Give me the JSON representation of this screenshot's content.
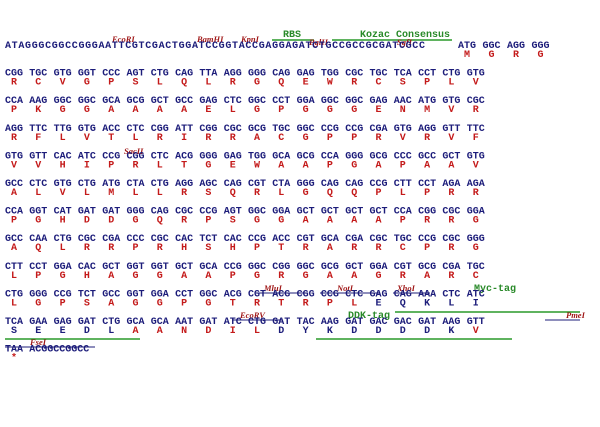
{
  "annotations": [
    "EcoRI",
    "BamHI",
    "KpnI",
    "RBS",
    "BglII",
    "Kozac Consensus",
    "SgfI",
    "SacII",
    "MluI",
    "NotI",
    "XhoI",
    "Myc-tag",
    "EcoRV",
    "DDK-tag",
    "PmeI",
    "FseI"
  ],
  "rows": [
    {
      "leader": "ATAGGGCGGCCGGGAATTCGTCGACTGGATCCGGTACCGAGGAGATCTGCCGCCGCGATCGCC",
      "codons": [
        "ATG",
        "GGC",
        "AGG",
        "GGG"
      ],
      "aa": [
        "M",
        "G",
        "R",
        "G"
      ]
    },
    {
      "codons": [
        "CGG",
        "TGC",
        "GTG",
        "GGT",
        "CCC",
        "AGT",
        "CTG",
        "CAG",
        "TTA",
        "AGG",
        "GGG",
        "CAG",
        "GAG",
        "TGG",
        "CGC",
        "TGC",
        "TCA",
        "CCT",
        "CTG",
        "GTG"
      ],
      "aa": [
        "R",
        "C",
        "V",
        "G",
        "P",
        "S",
        "L",
        "Q",
        "L",
        "R",
        "G",
        "Q",
        "E",
        "W",
        "R",
        "C",
        "S",
        "P",
        "L",
        "V"
      ]
    },
    {
      "codons": [
        "CCA",
        "AAG",
        "GGC",
        "GGC",
        "GCA",
        "GCG",
        "GCT",
        "GCC",
        "GAG",
        "CTC",
        "GGC",
        "CCT",
        "GGA",
        "GGC",
        "GGC",
        "GAG",
        "AAC",
        "ATG",
        "GTG",
        "CGC"
      ],
      "aa": [
        "P",
        "K",
        "G",
        "G",
        "A",
        "A",
        "A",
        "A",
        "E",
        "L",
        "G",
        "P",
        "G",
        "G",
        "G",
        "E",
        "N",
        "M",
        "V",
        "R"
      ]
    },
    {
      "codons": [
        "AGG",
        "TTC",
        "TTG",
        "GTG",
        "ACC",
        "CTC",
        "CGG",
        "ATT",
        "CGG",
        "CGC",
        "GCG",
        "TGC",
        "GGC",
        "CCG",
        "CCG",
        "CGA",
        "GTG",
        "AGG",
        "GTT",
        "TTC"
      ],
      "aa": [
        "R",
        "F",
        "L",
        "V",
        "T",
        "L",
        "R",
        "I",
        "R",
        "R",
        "A",
        "C",
        "G",
        "P",
        "P",
        "R",
        "V",
        "R",
        "V",
        "F"
      ]
    },
    {
      "codons": [
        "GTG",
        "GTT",
        "CAC",
        "ATC",
        "CCG",
        "CGG",
        "CTC",
        "ACG",
        "GGG",
        "GAG",
        "TGG",
        "GCA",
        "GCG",
        "CCA",
        "GGG",
        "GCG",
        "CCC",
        "GCC",
        "GCT",
        "GTG"
      ],
      "aa": [
        "V",
        "V",
        "H",
        "I",
        "P",
        "R",
        "L",
        "T",
        "G",
        "E",
        "W",
        "A",
        "A",
        "P",
        "G",
        "A",
        "P",
        "A",
        "A",
        "V"
      ]
    },
    {
      "codons": [
        "GCC",
        "CTC",
        "GTG",
        "CTG",
        "ATG",
        "CTA",
        "CTG",
        "AGG",
        "AGC",
        "CAG",
        "CGT",
        "CTA",
        "GGG",
        "CAG",
        "CAG",
        "CCG",
        "CTT",
        "CCT",
        "AGA",
        "AGA"
      ],
      "aa": [
        "A",
        "L",
        "V",
        "L",
        "M",
        "L",
        "L",
        "R",
        "S",
        "Q",
        "R",
        "L",
        "G",
        "Q",
        "Q",
        "P",
        "L",
        "P",
        "R",
        "R"
      ]
    },
    {
      "codons": [
        "CCA",
        "GGT",
        "CAT",
        "GAT",
        "GAT",
        "GGG",
        "CAG",
        "CGC",
        "CCG",
        "AGT",
        "GGC",
        "GGA",
        "GCT",
        "GCT",
        "GCT",
        "GCT",
        "CCA",
        "CGG",
        "CGC",
        "GGA"
      ],
      "aa": [
        "P",
        "G",
        "H",
        "D",
        "D",
        "G",
        "Q",
        "R",
        "P",
        "S",
        "G",
        "G",
        "A",
        "A",
        "A",
        "A",
        "P",
        "R",
        "R",
        "G"
      ]
    },
    {
      "codons": [
        "GCC",
        "CAA",
        "CTG",
        "CGC",
        "CGA",
        "CCC",
        "CGC",
        "CAC",
        "TCT",
        "CAC",
        "CCG",
        "ACC",
        "CGT",
        "GCA",
        "CGA",
        "CGC",
        "TGC",
        "CCG",
        "CGC",
        "GGG"
      ],
      "aa": [
        "A",
        "Q",
        "L",
        "R",
        "R",
        "P",
        "R",
        "H",
        "S",
        "H",
        "P",
        "T",
        "R",
        "A",
        "R",
        "R",
        "C",
        "P",
        "R",
        "G"
      ]
    },
    {
      "codons": [
        "CTT",
        "CCT",
        "GGA",
        "CAC",
        "GCT",
        "GGT",
        "GGT",
        "GCT",
        "GCA",
        "CCG",
        "GGC",
        "CGG",
        "GGC",
        "GCG",
        "GCT",
        "GGA",
        "CGT",
        "GCG",
        "CGA",
        "TGC"
      ],
      "aa": [
        "L",
        "P",
        "G",
        "H",
        "A",
        "G",
        "G",
        "A",
        "A",
        "P",
        "G",
        "R",
        "G",
        "A",
        "A",
        "G",
        "R",
        "A",
        "R",
        "C"
      ]
    },
    {
      "codons": [
        "CTG",
        "GGG",
        "CCG",
        "TCT",
        "GCC",
        "GGT",
        "GGA",
        "CCT",
        "GGC",
        "ACG",
        "CGT",
        "ACG",
        "CGG",
        "CCG",
        "CTC",
        "GAG",
        "CAG",
        "AAA",
        "CTC",
        "ATC"
      ],
      "aa": [
        "L",
        "G",
        "P",
        "S",
        "A",
        "G",
        "G",
        "P",
        "G",
        "T",
        "R",
        "T",
        "R",
        "P",
        "L",
        "E",
        "Q",
        "K",
        "L",
        "I"
      ]
    },
    {
      "codons": [
        "TCA",
        "GAA",
        "GAG",
        "GAT",
        "CTG",
        "GCA",
        "GCA",
        "AAT",
        "GAT",
        "ATC",
        "CTG",
        "GAT",
        "TAC",
        "AAG",
        "GAT",
        "GAC",
        "GAC",
        "GAT",
        "AAG",
        "GTT"
      ],
      "aa": [
        "S",
        "E",
        "E",
        "D",
        "L",
        "A",
        "A",
        "N",
        "D",
        "I",
        "L",
        "D",
        "Y",
        "K",
        "D",
        "D",
        "D",
        "D",
        "K",
        "V"
      ]
    },
    {
      "codons": [
        "TAA",
        "ACGGCCGGCC"
      ],
      "aa": [
        "*"
      ]
    }
  ]
}
